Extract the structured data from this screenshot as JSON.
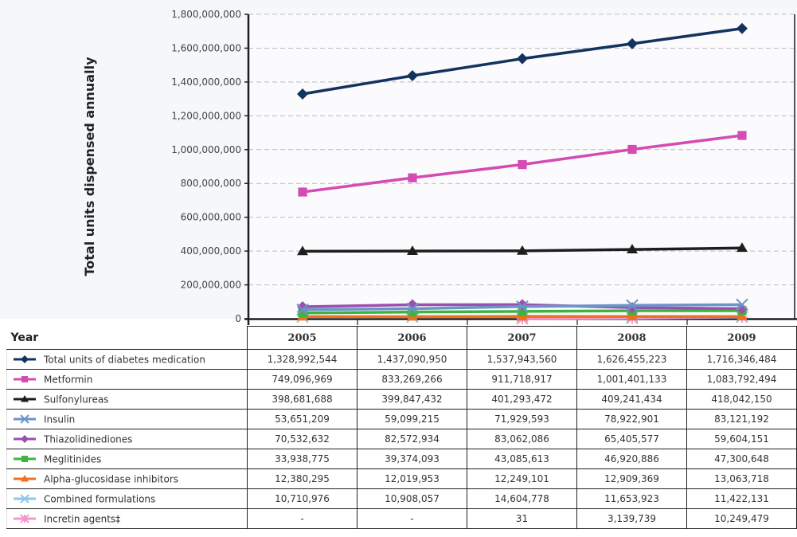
{
  "chart_data": {
    "type": "line",
    "title": "",
    "xlabel": "Year",
    "ylabel": "Total units dispensed annually",
    "ylim": [
      0,
      1800000000
    ],
    "y_ticks": [
      0,
      200000000,
      400000000,
      600000000,
      800000000,
      1000000000,
      1200000000,
      1400000000,
      1600000000,
      1800000000
    ],
    "y_tick_labels": [
      "0",
      "200,000,000",
      "400,000,000",
      "600,000,000",
      "800,000,000",
      "1,000,000,000",
      "1,200,000,000",
      "1,400,000,000",
      "1,600,000,000",
      "1,800,000,000"
    ],
    "grid": "horizontal-dashed",
    "legend": "table-below",
    "categories": [
      "2005",
      "2006",
      "2007",
      "2008",
      "2009"
    ],
    "series": [
      {
        "name": "Total units of diabetes medication",
        "color": "#13335f",
        "marker": "diamond",
        "values": [
          1328992544,
          1437090950,
          1537943560,
          1626455223,
          1716346484
        ],
        "labels": [
          "1,328,992,544",
          "1,437,090,950",
          "1,537,943,560",
          "1,626,455,223",
          "1,716,346,484"
        ]
      },
      {
        "name": "Metformin",
        "color": "#d44bb3",
        "marker": "square",
        "values": [
          749096969,
          833269266,
          911718917,
          1001401133,
          1083792494
        ],
        "labels": [
          "749,096,969",
          "833,269,266",
          "911,718,917",
          "1,001,401,133",
          "1,083,792,494"
        ]
      },
      {
        "name": "Sulfonylureas",
        "color": "#1e1e1e",
        "marker": "triangle",
        "values": [
          398681688,
          399847432,
          401293472,
          409241434,
          418042150
        ],
        "labels": [
          "398,681,688",
          "399,847,432",
          "401,293,472",
          "409,241,434",
          "418,042,150"
        ]
      },
      {
        "name": "Insulin",
        "color": "#6b95c8",
        "marker": "x",
        "values": [
          53651209,
          59099215,
          71929593,
          78922901,
          83121192
        ],
        "labels": [
          "53,651,209",
          "59,099,215",
          "71,929,593",
          "78,922,901",
          "83,121,192"
        ]
      },
      {
        "name": "Thiazolidinediones",
        "color": "#9b4fae",
        "marker": "diamond",
        "values": [
          70532632,
          82572934,
          83062086,
          65405577,
          59604151
        ],
        "labels": [
          "70,532,632",
          "82,572,934",
          "83,062,086",
          "65,405,577",
          "59,604,151"
        ]
      },
      {
        "name": "Meglitinides",
        "color": "#3db53d",
        "marker": "square",
        "values": [
          33938775,
          39374093,
          43085613,
          46920886,
          47300648
        ],
        "labels": [
          "33,938,775",
          "39,374,093",
          "43,085,613",
          "46,920,886",
          "47,300,648"
        ]
      },
      {
        "name": "Alpha-glucosidase inhibitors",
        "color": "#f07020",
        "marker": "triangle",
        "values": [
          12380295,
          12019953,
          12249101,
          12909369,
          13063718
        ],
        "labels": [
          "12,380,295",
          "12,019,953",
          "12,249,101",
          "12,909,369",
          "13,063,718"
        ]
      },
      {
        "name": "Combined formulations",
        "color": "#8ec5ec",
        "marker": "x",
        "values": [
          10710976,
          10908057,
          14604778,
          11653923,
          11422131
        ],
        "labels": [
          "10,710,976",
          "10,908,057",
          "14,604,778",
          "11,653,923",
          "11,422,131"
        ]
      },
      {
        "name": "Incretin agents‡",
        "color": "#f595d0",
        "marker": "asterisk",
        "values": [
          null,
          null,
          31,
          3139739,
          10249479
        ],
        "labels": [
          "-",
          "-",
          "31",
          "3,139,739",
          "10,249,479"
        ]
      }
    ]
  }
}
